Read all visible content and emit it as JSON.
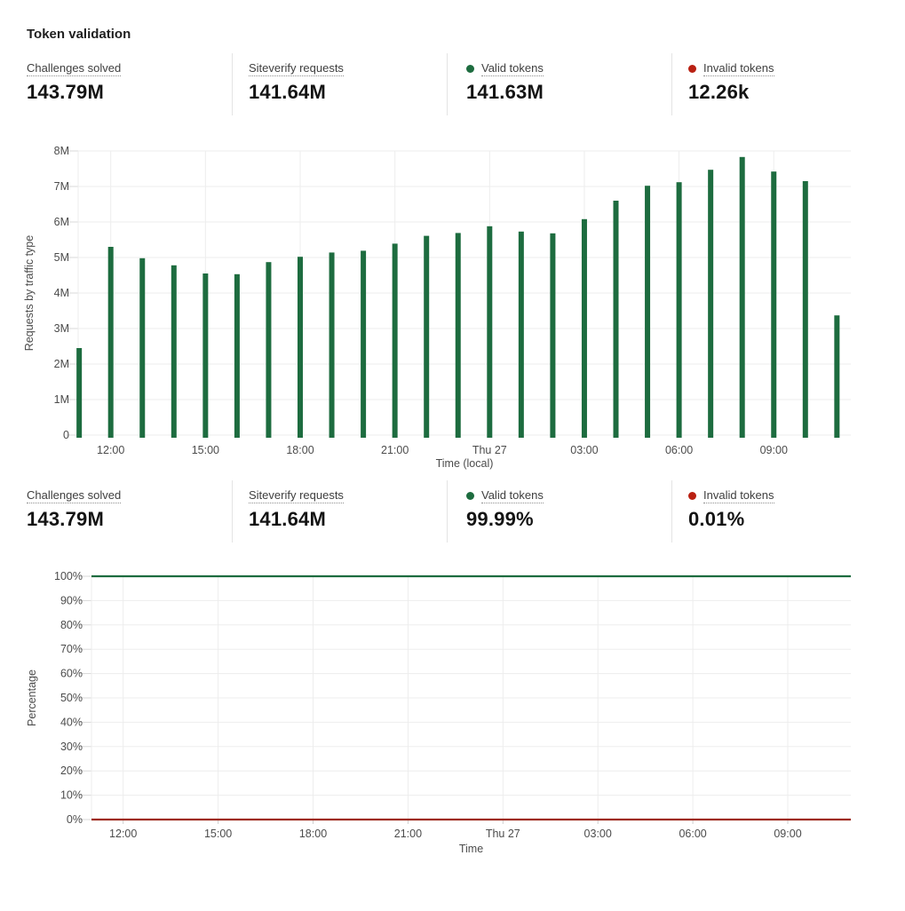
{
  "page": {
    "title": "Token validation"
  },
  "colors": {
    "green": "#1d6c3f",
    "red_dot": "#b92012",
    "red_line": "#9e2b1c",
    "grid": "#ededed",
    "grid_tick": "#d9d9d9"
  },
  "stats_top": {
    "items": [
      {
        "label": "Challenges solved",
        "value": "143.79M",
        "dot": null
      },
      {
        "label": "Siteverify requests",
        "value": "141.64M",
        "dot": null
      },
      {
        "label": "Valid tokens",
        "value": "141.63M",
        "dot": "green"
      },
      {
        "label": "Invalid tokens",
        "value": "12.26k",
        "dot": "red"
      }
    ]
  },
  "stats_bottom": {
    "items": [
      {
        "label": "Challenges solved",
        "value": "143.79M",
        "dot": null
      },
      {
        "label": "Siteverify requests",
        "value": "141.64M",
        "dot": null
      },
      {
        "label": "Valid tokens",
        "value": "99.99%",
        "dot": "green"
      },
      {
        "label": "Invalid tokens",
        "value": "0.01%",
        "dot": "red"
      }
    ]
  },
  "chart_data": [
    {
      "type": "bar",
      "title": "",
      "ylabel": "Requests by traffic type",
      "xlabel": "Time (local)",
      "ylim": [
        0,
        8000000
      ],
      "ytick_labels": [
        "0",
        "1M",
        "2M",
        "3M",
        "4M",
        "5M",
        "6M",
        "7M",
        "8M"
      ],
      "xtick_labels": [
        "12:00",
        "15:00",
        "18:00",
        "21:00",
        "Thu 27",
        "03:00",
        "06:00",
        "09:00"
      ],
      "categories": [
        "11:00",
        "12:00",
        "13:00",
        "14:00",
        "15:00",
        "16:00",
        "17:00",
        "18:00",
        "19:00",
        "20:00",
        "21:00",
        "22:00",
        "23:00",
        "Thu 27 00:00",
        "01:00",
        "02:00",
        "03:00",
        "04:00",
        "05:00",
        "06:00",
        "07:00",
        "08:00",
        "09:00",
        "10:00",
        "11:00"
      ],
      "series": [
        {
          "name": "Valid tokens",
          "values_millions": [
            2.45,
            5.3,
            4.98,
            4.78,
            4.55,
            4.53,
            4.87,
            5.02,
            5.14,
            5.19,
            5.39,
            5.61,
            5.69,
            5.88,
            5.73,
            5.68,
            6.08,
            6.6,
            7.02,
            7.12,
            7.47,
            7.83,
            7.42,
            7.15,
            3.37
          ],
          "color": "#1d6c3f"
        }
      ],
      "grid": true,
      "legend": "none"
    },
    {
      "type": "line",
      "title": "",
      "ylabel": "Percentage",
      "xlabel": "Time",
      "ylim": [
        0,
        100
      ],
      "ytick_labels": [
        "0%",
        "10%",
        "20%",
        "30%",
        "40%",
        "50%",
        "60%",
        "70%",
        "80%",
        "90%",
        "100%"
      ],
      "xtick_labels": [
        "12:00",
        "15:00",
        "18:00",
        "21:00",
        "Thu 27",
        "03:00",
        "06:00",
        "09:00"
      ],
      "series": [
        {
          "name": "Valid tokens",
          "value_percent": 100,
          "color": "#1d6c3f"
        },
        {
          "name": "Invalid tokens",
          "value_percent": 0,
          "color": "#9e2b1c"
        }
      ],
      "grid": true,
      "legend": "none"
    }
  ]
}
